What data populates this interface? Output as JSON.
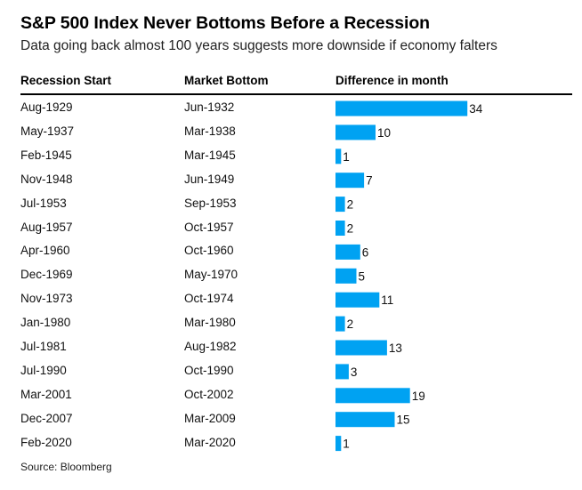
{
  "chart_data": {
    "type": "table",
    "title": "S&P 500 Index Never Bottoms Before a Recession",
    "subtitle": "Data going back almost 100 years suggests more downside if economy falters",
    "columns": [
      "Recession Start",
      "Market Bottom",
      "Difference in month"
    ],
    "rows": [
      {
        "start": "Aug-1929",
        "bottom": "Jun-1932",
        "diff": 34
      },
      {
        "start": "May-1937",
        "bottom": "Mar-1938",
        "diff": 10
      },
      {
        "start": "Feb-1945",
        "bottom": "Mar-1945",
        "diff": 1
      },
      {
        "start": "Nov-1948",
        "bottom": "Jun-1949",
        "diff": 7
      },
      {
        "start": "Jul-1953",
        "bottom": "Sep-1953",
        "diff": 2
      },
      {
        "start": "Aug-1957",
        "bottom": "Oct-1957",
        "diff": 2
      },
      {
        "start": "Apr-1960",
        "bottom": "Oct-1960",
        "diff": 6
      },
      {
        "start": "Dec-1969",
        "bottom": "May-1970",
        "diff": 5
      },
      {
        "start": "Nov-1973",
        "bottom": "Oct-1974",
        "diff": 11
      },
      {
        "start": "Jan-1980",
        "bottom": "Mar-1980",
        "diff": 2
      },
      {
        "start": "Jul-1981",
        "bottom": "Aug-1982",
        "diff": 13
      },
      {
        "start": "Jul-1990",
        "bottom": "Oct-1990",
        "diff": 3
      },
      {
        "start": "Mar-2001",
        "bottom": "Oct-2002",
        "diff": 19
      },
      {
        "start": "Dec-2007",
        "bottom": "Mar-2009",
        "diff": 15
      },
      {
        "start": "Feb-2020",
        "bottom": "Mar-2020",
        "diff": 1
      }
    ],
    "bar_color": "#00a2f2",
    "source": "Source: Bloomberg"
  }
}
